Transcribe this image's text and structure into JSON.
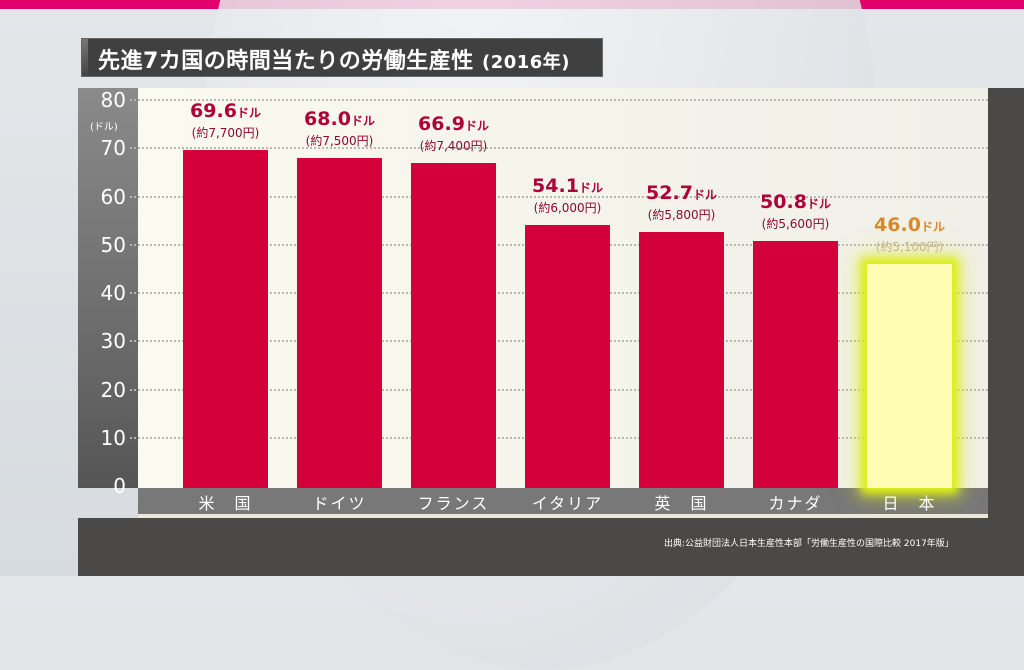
{
  "chart_data": {
    "type": "bar",
    "title": "先進7カ国の時間当たりの労働生産性",
    "title_year": "(2016年)",
    "xlabel": "",
    "ylabel": "(ドル)",
    "ylim": [
      0,
      80
    ],
    "yticks": [
      0,
      10,
      20,
      30,
      40,
      50,
      60,
      70,
      80
    ],
    "grid": true,
    "categories": [
      "米　国",
      "ドイツ",
      "フランス",
      "イタリア",
      "英　国",
      "カナダ",
      "日　本"
    ],
    "values": [
      69.6,
      68.0,
      66.9,
      54.1,
      52.7,
      50.8,
      46.0
    ],
    "value_labels": [
      "69.6",
      "68.0",
      "66.9",
      "54.1",
      "52.7",
      "50.8",
      "46.0"
    ],
    "value_unit": "ドル",
    "yen_labels": [
      "(約7,700円)",
      "(約7,500円)",
      "(約7,400円)",
      "(約6,000円)",
      "(約5,800円)",
      "(約5,600円)",
      "(約5,100円)"
    ],
    "highlight_index": 6,
    "colors": {
      "bar": "#d4003a",
      "highlight_bar": "#fdfdb3",
      "highlight_glow": "#dcee1a",
      "highlight_label": "#d88a2a",
      "label": "#b0003a"
    },
    "source": "出典:公益財団法人日本生産性本部「労働生産性の国際比較 2017年版」"
  }
}
